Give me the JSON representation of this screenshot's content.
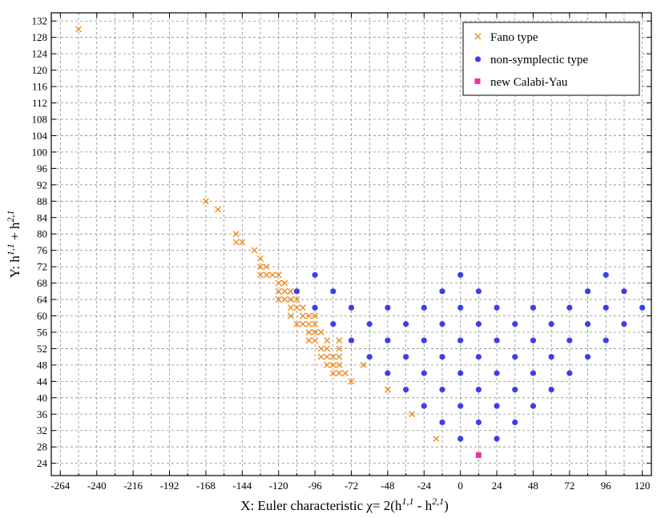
{
  "chart_data": {
    "type": "scatter",
    "xlabel_prefix": "X: Euler characteristic χ= 2(h",
    "xlabel_sup1": "1,1",
    "xlabel_mid": " - h",
    "xlabel_sup2": "2,1",
    "xlabel_suffix": ")",
    "ylabel_prefix": "Y: h",
    "ylabel_sup1": "1,1",
    "ylabel_mid": " + h",
    "ylabel_sup2": "2,1",
    "xlim": [
      -270,
      126
    ],
    "ylim": [
      21,
      134
    ],
    "xticks": [
      -264,
      -240,
      -216,
      -192,
      -168,
      -144,
      -120,
      -96,
      -72,
      -48,
      -24,
      0,
      24,
      48,
      72,
      96,
      120
    ],
    "yticks": [
      24,
      28,
      32,
      36,
      40,
      44,
      48,
      52,
      56,
      60,
      64,
      68,
      72,
      76,
      80,
      84,
      88,
      92,
      96,
      100,
      104,
      108,
      112,
      116,
      120,
      124,
      128,
      132
    ],
    "grid": true,
    "legend_position": "top-right",
    "colors": {
      "fano": "#ef8a1f",
      "nonsym": "#3d3df0",
      "cy": "#f0339a"
    },
    "series": [
      {
        "name": "Fano type",
        "marker": "cross",
        "points": [
          [
            -252,
            130
          ],
          [
            -168,
            88
          ],
          [
            -160,
            86
          ],
          [
            -148,
            80
          ],
          [
            -148,
            78
          ],
          [
            -144,
            78
          ],
          [
            -136,
            76
          ],
          [
            -132,
            74
          ],
          [
            -132,
            72
          ],
          [
            -128,
            72
          ],
          [
            -132,
            70
          ],
          [
            -128,
            70
          ],
          [
            -124,
            70
          ],
          [
            -120,
            70
          ],
          [
            -120,
            68
          ],
          [
            -116,
            68
          ],
          [
            -120,
            66
          ],
          [
            -116,
            66
          ],
          [
            -112,
            66
          ],
          [
            -120,
            64
          ],
          [
            -116,
            64
          ],
          [
            -112,
            64
          ],
          [
            -108,
            64
          ],
          [
            -112,
            62
          ],
          [
            -108,
            62
          ],
          [
            -104,
            62
          ],
          [
            -112,
            60
          ],
          [
            -104,
            60
          ],
          [
            -100,
            60
          ],
          [
            -96,
            60
          ],
          [
            -108,
            58
          ],
          [
            -104,
            58
          ],
          [
            -100,
            58
          ],
          [
            -96,
            58
          ],
          [
            -100,
            56
          ],
          [
            -96,
            56
          ],
          [
            -92,
            56
          ],
          [
            -100,
            54
          ],
          [
            -96,
            54
          ],
          [
            -88,
            54
          ],
          [
            -80,
            54
          ],
          [
            -92,
            52
          ],
          [
            -88,
            52
          ],
          [
            -80,
            52
          ],
          [
            -92,
            50
          ],
          [
            -88,
            50
          ],
          [
            -84,
            50
          ],
          [
            -80,
            50
          ],
          [
            -88,
            48
          ],
          [
            -84,
            48
          ],
          [
            -80,
            48
          ],
          [
            -64,
            48
          ],
          [
            -84,
            46
          ],
          [
            -80,
            46
          ],
          [
            -76,
            46
          ],
          [
            -72,
            44
          ],
          [
            -48,
            42
          ],
          [
            -32,
            36
          ],
          [
            -16,
            30
          ]
        ]
      },
      {
        "name": "non-symplectic type",
        "marker": "circle",
        "points": [
          [
            -96,
            70
          ],
          [
            0,
            70
          ],
          [
            96,
            70
          ],
          [
            -108,
            66
          ],
          [
            -84,
            66
          ],
          [
            -12,
            66
          ],
          [
            12,
            66
          ],
          [
            84,
            66
          ],
          [
            108,
            66
          ],
          [
            -96,
            62
          ],
          [
            -72,
            62
          ],
          [
            -48,
            62
          ],
          [
            -24,
            62
          ],
          [
            0,
            62
          ],
          [
            24,
            62
          ],
          [
            48,
            62
          ],
          [
            72,
            62
          ],
          [
            96,
            62
          ],
          [
            120,
            62
          ],
          [
            -84,
            58
          ],
          [
            -60,
            58
          ],
          [
            -36,
            58
          ],
          [
            -12,
            58
          ],
          [
            12,
            58
          ],
          [
            36,
            58
          ],
          [
            60,
            58
          ],
          [
            84,
            58
          ],
          [
            108,
            58
          ],
          [
            -72,
            54
          ],
          [
            -48,
            54
          ],
          [
            -24,
            54
          ],
          [
            0,
            54
          ],
          [
            24,
            54
          ],
          [
            48,
            54
          ],
          [
            72,
            54
          ],
          [
            96,
            54
          ],
          [
            -60,
            50
          ],
          [
            -36,
            50
          ],
          [
            -12,
            50
          ],
          [
            12,
            50
          ],
          [
            36,
            50
          ],
          [
            60,
            50
          ],
          [
            84,
            50
          ],
          [
            -48,
            46
          ],
          [
            -24,
            46
          ],
          [
            0,
            46
          ],
          [
            24,
            46
          ],
          [
            48,
            46
          ],
          [
            72,
            46
          ],
          [
            -36,
            42
          ],
          [
            -12,
            42
          ],
          [
            12,
            42
          ],
          [
            36,
            42
          ],
          [
            60,
            42
          ],
          [
            -24,
            38
          ],
          [
            0,
            38
          ],
          [
            24,
            38
          ],
          [
            48,
            38
          ],
          [
            -12,
            34
          ],
          [
            12,
            34
          ],
          [
            36,
            34
          ],
          [
            0,
            30
          ],
          [
            24,
            30
          ]
        ]
      },
      {
        "name": "new Calabi-Yau",
        "marker": "square",
        "points": [
          [
            12,
            26
          ]
        ]
      }
    ]
  }
}
